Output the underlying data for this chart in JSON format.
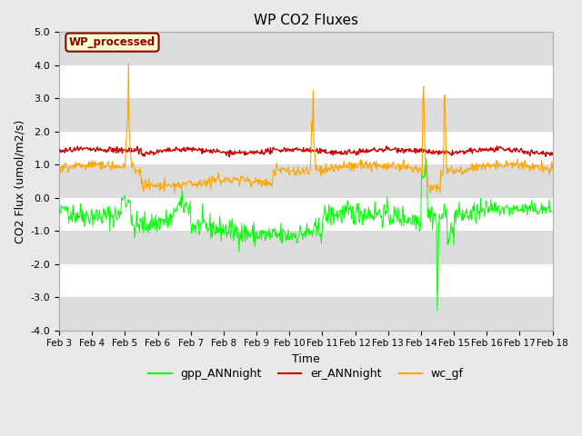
{
  "title": "WP CO2 Fluxes",
  "xlabel": "Time",
  "ylabel": "CO2 Flux (umol/m2/s)",
  "ylim": [
    -4.0,
    5.0
  ],
  "yticks": [
    -4.0,
    -3.0,
    -2.0,
    -1.0,
    0.0,
    1.0,
    2.0,
    3.0,
    4.0,
    5.0
  ],
  "xlim": [
    0,
    15
  ],
  "n_points": 720,
  "annotation_text": "WP_processed",
  "annotation_bg": "#FFFFCC",
  "annotation_edge": "#8B0000",
  "annotation_text_color": "#8B0000",
  "gpp_color": "#00FF00",
  "er_color": "#CC0000",
  "wc_color": "#FFA500",
  "fig_bg": "#E8E8E8",
  "plot_bg": "#FFFFFF",
  "band_color": "#DCDCDC",
  "title_fontsize": 11,
  "axis_label_fontsize": 9,
  "tick_fontsize": 8,
  "legend_fontsize": 9
}
